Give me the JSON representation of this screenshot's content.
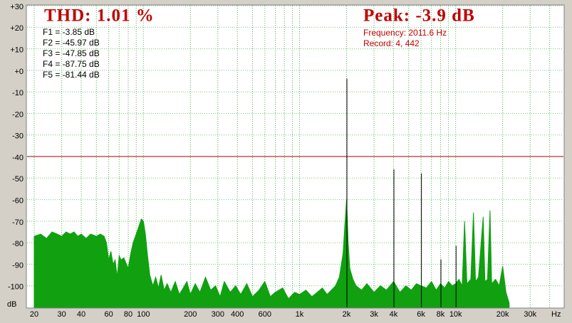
{
  "chart_data": {
    "type": "spectrum",
    "title": "THD: 1.01 %",
    "peak": "Peak: -3.9 dB",
    "readouts": [
      "F1 = -3.85 dB",
      "F2 = -45.97 dB",
      "F3 = -47.85 dB",
      "F4 = -87.75 dB",
      "F5 = -81.44 dB"
    ],
    "info": [
      "Frequency: 2011.6 Hz",
      "Record: 4,  442"
    ],
    "ylabel": "dB",
    "xlabel": "Hz",
    "xlim": [
      18,
      49000
    ],
    "ylim": [
      -110,
      30
    ],
    "log_x": true,
    "grid": true,
    "yticks": [
      {
        "value": 30,
        "label": "+30"
      },
      {
        "value": 20,
        "label": "+20"
      },
      {
        "value": 10,
        "label": "+10"
      },
      {
        "value": 0,
        "label": "+0"
      },
      -10,
      -20,
      -30,
      -40,
      -50,
      -60,
      -70,
      -80,
      -90,
      -100
    ],
    "xticks": [
      20,
      30,
      40,
      60,
      80,
      100,
      200,
      300,
      400,
      600,
      {
        "value": 1000,
        "label": "1k"
      },
      {
        "value": 2000,
        "label": "2k"
      },
      {
        "value": 3000,
        "label": "3k"
      },
      {
        "value": 4000,
        "label": "4k"
      },
      {
        "value": 6000,
        "label": "6k"
      },
      {
        "value": 8000,
        "label": "8k"
      },
      {
        "value": 10000,
        "label": "10k"
      },
      {
        "value": 20000,
        "label": "20k"
      },
      {
        "value": 30000,
        "label": "30k"
      }
    ],
    "xgrid": [
      20,
      30,
      40,
      50,
      60,
      70,
      80,
      90,
      100,
      200,
      300,
      400,
      500,
      600,
      700,
      800,
      900,
      1000,
      2000,
      3000,
      4000,
      5000,
      6000,
      7000,
      8000,
      9000,
      10000,
      20000,
      30000,
      40000
    ],
    "reference_line": -40,
    "reference_color": "#a00000",
    "spectrum": {
      "color": "#10a010",
      "x": [
        20,
        22,
        24,
        26,
        28,
        30,
        32,
        34,
        36,
        38,
        40,
        43,
        46,
        50,
        53,
        56,
        58,
        60,
        62,
        64,
        66,
        68,
        70,
        72,
        75,
        78,
        80,
        83,
        86,
        90,
        94,
        97,
        100,
        103,
        106,
        110,
        115,
        120,
        125,
        130,
        136,
        142,
        150,
        160,
        170,
        180,
        190,
        200,
        215,
        230,
        250,
        270,
        290,
        310,
        330,
        360,
        390,
        420,
        460,
        500,
        550,
        600,
        650,
        700,
        780,
        850,
        930,
        1000,
        1100,
        1200,
        1300,
        1400,
        1500,
        1600,
        1700,
        1800,
        1900,
        1950,
        2000,
        2050,
        2100,
        2200,
        2300,
        2500,
        2700,
        3000,
        3300,
        3600,
        4000,
        4400,
        4800,
        5200,
        5600,
        6000,
        6500,
        7000,
        7500,
        8000,
        8500,
        9000,
        9500,
        10000,
        10500,
        11000,
        11400,
        11800,
        12500,
        13000,
        13400,
        14000,
        15000,
        15400,
        16000,
        16600,
        17000,
        18000,
        19000,
        20000,
        21000,
        22000
      ],
      "values": [
        -77,
        -76,
        -78,
        -75,
        -76,
        -77,
        -75,
        -76,
        -75,
        -77,
        -76,
        -78,
        -76,
        -77,
        -76,
        -77,
        -80,
        -88,
        -84,
        -90,
        -88,
        -96,
        -86,
        -88,
        -87,
        -90,
        -92,
        -85,
        -80,
        -76,
        -72,
        -69,
        -70,
        -76,
        -85,
        -95,
        -100,
        -96,
        -101,
        -95,
        -102,
        -99,
        -103,
        -98,
        -104,
        -101,
        -98,
        -104,
        -99,
        -103,
        -96,
        -102,
        -100,
        -105,
        -98,
        -103,
        -100,
        -104,
        -99,
        -105,
        -102,
        -98,
        -105,
        -103,
        -101,
        -106,
        -103,
        -104,
        -102,
        -105,
        -103,
        -101,
        -104,
        -102,
        -100,
        -96,
        -85,
        -72,
        -60,
        -80,
        -92,
        -97,
        -100,
        -102,
        -99,
        -103,
        -100,
        -102,
        -98,
        -103,
        -100,
        -102,
        -99,
        -100,
        -101,
        -98,
        -102,
        -99,
        -101,
        -98,
        -100,
        -99,
        -97,
        -100,
        -70,
        -99,
        -97,
        -66,
        -98,
        -96,
        -68,
        -98,
        -97,
        -65,
        -99,
        -97,
        -100,
        -91,
        -103,
        -108
      ]
    },
    "harmonics": {
      "color": "#000000",
      "x": [
        2011.6,
        4023,
        6035,
        8046,
        10058
      ],
      "values": [
        -3.9,
        -45.97,
        -47.85,
        -87.75,
        -81.44
      ]
    }
  }
}
